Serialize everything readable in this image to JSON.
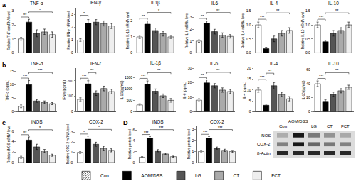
{
  "panel_labels": [
    "a",
    "b",
    "c",
    "D"
  ],
  "groups": [
    {
      "name": "Con",
      "color": "#ffffff",
      "marker": "hatched"
    },
    {
      "name": "AOM/DSS",
      "color": "#000000"
    },
    {
      "name": "LG",
      "color": "#555555"
    },
    {
      "name": "CT",
      "color": "#aaaaaa"
    },
    {
      "name": "FCT",
      "color": "#eeeeee"
    }
  ],
  "blot": {
    "lanes": [
      "Con",
      "AOM/DSS",
      "LG",
      "CT",
      "FCT"
    ],
    "rows": [
      "iNOS",
      "COX-2",
      "β-Actin"
    ]
  },
  "chart_data": [
    {
      "type": "bar",
      "title": "TNF-α",
      "y_label": "Relative TNF-α mRNA level",
      "tick_labels": "y",
      "categories": [
        "Con",
        "AOM/DSS",
        "LG",
        "CT",
        "FCT"
      ],
      "values": [
        1.0,
        2.2,
        1.4,
        1.5,
        1.3
      ],
      "errors": [
        0.1,
        0.2,
        0.25,
        0.2,
        0.2
      ],
      "ylim": [
        0,
        3.2
      ],
      "yticks": [
        0,
        1,
        2,
        3
      ],
      "significance": [
        {
          "from": 0,
          "to": 1,
          "label": "**"
        },
        {
          "from": 1,
          "to": 4,
          "label": "*"
        }
      ]
    },
    {
      "type": "bar",
      "title": "IFN-γ",
      "y_label": "Relative IFN-γ mRNA level",
      "tick_labels": "y",
      "categories": [
        "Con",
        "AOM/DSS",
        "LG",
        "CT",
        "FCT"
      ],
      "values": [
        1.0,
        2.3,
        2.4,
        2.3,
        2.1
      ],
      "errors": [
        0.1,
        0.3,
        0.2,
        0.2,
        0.2
      ],
      "ylim": [
        0,
        3.5
      ],
      "yticks": [
        0,
        1,
        2,
        3
      ],
      "significance": [
        {
          "from": 0,
          "to": 1,
          "label": "*"
        }
      ]
    },
    {
      "type": "bar",
      "title": "IL1β",
      "y_label": "Relative IL-1β mRNA level",
      "tick_labels": "y",
      "categories": [
        "Con",
        "AOM/DSS",
        "LG",
        "CT",
        "FCT"
      ],
      "values": [
        1.0,
        1.8,
        1.4,
        1.2,
        1.0
      ],
      "errors": [
        0.1,
        0.2,
        0.15,
        0.15,
        0.1
      ],
      "ylim": [
        0,
        2.8
      ],
      "yticks": [
        0,
        1,
        2
      ],
      "significance": [
        {
          "from": 0,
          "to": 1,
          "label": "**"
        },
        {
          "from": 1,
          "to": 4,
          "label": "*"
        }
      ]
    },
    {
      "type": "bar",
      "title": "IL6",
      "y_label": "Relative IL-6 mRNA level",
      "tick_labels": "y",
      "categories": [
        "Con",
        "AOM/DSS",
        "LG",
        "CT",
        "FCT"
      ],
      "values": [
        1.0,
        2.5,
        1.8,
        1.5,
        1.4
      ],
      "errors": [
        0.1,
        0.2,
        0.2,
        0.2,
        0.15
      ],
      "ylim": [
        0,
        3.8
      ],
      "yticks": [
        0,
        1,
        2,
        3
      ],
      "significance": [
        {
          "from": 0,
          "to": 1,
          "label": "**"
        },
        {
          "from": 1,
          "to": 4,
          "label": "**"
        }
      ]
    },
    {
      "type": "bar",
      "title": "IL-4",
      "y_label": "Relative IL-4 mRNA level",
      "tick_labels": "y",
      "categories": [
        "Con",
        "AOM/DSS",
        "LG",
        "CT",
        "FCT"
      ],
      "values": [
        1.0,
        0.15,
        0.5,
        0.7,
        0.8
      ],
      "errors": [
        0.1,
        0.05,
        0.1,
        0.1,
        0.1
      ],
      "ylim": [
        0,
        1.6
      ],
      "yticks": [
        {
          "value": 0,
          "label": "0.0"
        },
        {
          "value": 0.5,
          "label": "0.5"
        },
        {
          "value": 1,
          "label": "1.0"
        },
        {
          "value": 1.5,
          "label": "1.5"
        }
      ],
      "significance": [
        {
          "from": 0,
          "to": 1,
          "label": "***"
        },
        {
          "from": 1,
          "to": 4,
          "label": "**"
        }
      ]
    },
    {
      "type": "bar",
      "title": "IL-10",
      "y_label": "Relative IL-10 mRNA level",
      "tick_labels": "y",
      "categories": [
        "Con",
        "AOM/DSS",
        "LG",
        "CT",
        "FCT"
      ],
      "values": [
        1.0,
        0.4,
        0.7,
        0.8,
        1.0
      ],
      "errors": [
        0.1,
        0.05,
        0.1,
        0.1,
        0.1
      ],
      "ylim": [
        0,
        1.6
      ],
      "yticks": [
        {
          "value": 0,
          "label": "0.0"
        },
        {
          "value": 0.5,
          "label": "0.5"
        },
        {
          "value": 1,
          "label": "1.0"
        },
        {
          "value": 1.5,
          "label": "1.5"
        }
      ],
      "significance": [
        {
          "from": 0,
          "to": 1,
          "label": "***"
        },
        {
          "from": 1,
          "to": 4,
          "label": "**"
        }
      ]
    },
    {
      "type": "bar",
      "title": "TNF-α",
      "y_label": "TNF-α (pg/mL)",
      "tick_labels": "y",
      "categories": [
        "Con",
        "AOM/DSS",
        "LG",
        "CT",
        "FCT"
      ],
      "values": [
        2,
        10,
        4,
        3.5,
        3
      ],
      "errors": [
        0.5,
        1.5,
        0.5,
        0.5,
        0.4
      ],
      "ylim": [
        0,
        16
      ],
      "yticks": [
        0,
        5,
        10,
        15
      ],
      "significance": [
        {
          "from": 0,
          "to": 1,
          "label": "***"
        },
        {
          "from": 1,
          "to": 4,
          "label": "***"
        }
      ]
    },
    {
      "type": "bar",
      "title": "IFN-r",
      "y_label": "IFN-γ (pg/mL)",
      "tick_labels": "y",
      "categories": [
        "Con",
        "AOM/DSS",
        "LG",
        "CT",
        "FCT"
      ],
      "values": [
        80,
        180,
        120,
        150,
        130
      ],
      "errors": [
        10,
        20,
        15,
        15,
        15
      ],
      "ylim": [
        0,
        280
      ],
      "yticks": [
        0,
        100,
        200
      ],
      "significance": [
        {
          "from": 0,
          "to": 1,
          "label": "***"
        },
        {
          "from": 1,
          "to": 2,
          "label": "**"
        }
      ]
    },
    {
      "type": "bar",
      "title": "IL-1β",
      "y_label": "IL-1β (pg/mL)",
      "tick_labels": "y",
      "categories": [
        "Con",
        "AOM/DSS",
        "LG",
        "CT",
        "FCT"
      ],
      "values": [
        300,
        1200,
        900,
        700,
        500
      ],
      "errors": [
        50,
        150,
        100,
        80,
        80
      ],
      "ylim": [
        0,
        1900
      ],
      "yticks": [
        0,
        500,
        1000,
        1500
      ],
      "significance": [
        {
          "from": 0,
          "to": 1,
          "label": "***"
        },
        {
          "from": 1,
          "to": 4,
          "label": "**"
        }
      ]
    },
    {
      "type": "bar",
      "title": "IL-6",
      "y_label": "IL-6 (pg/mL)",
      "tick_labels": "y",
      "categories": [
        "Con",
        "AOM/DSS",
        "LG",
        "CT",
        "FCT"
      ],
      "values": [
        8,
        20,
        18,
        15,
        14
      ],
      "errors": [
        1,
        2,
        1.5,
        1.5,
        1.5
      ],
      "ylim": [
        0,
        30
      ],
      "yticks": [
        0,
        10,
        20,
        30
      ],
      "significance": [
        {
          "from": 0,
          "to": 1,
          "label": "**"
        },
        {
          "from": 1,
          "to": 4,
          "label": "**"
        }
      ]
    },
    {
      "type": "bar",
      "title": "IL-4",
      "y_label": "IL-4 (pg/mL)",
      "tick_labels": "y",
      "categories": [
        "Con",
        "AOM/DSS",
        "LG",
        "CT",
        "FCT"
      ],
      "values": [
        10,
        3,
        12,
        8,
        6
      ],
      "errors": [
        1,
        0.5,
        1.5,
        1,
        1
      ],
      "ylim": [
        0,
        20
      ],
      "yticks": [
        0,
        5,
        10,
        15,
        20
      ],
      "significance": [
        {
          "from": 0,
          "to": 1,
          "label": "***"
        },
        {
          "from": 1,
          "to": 2,
          "label": "**"
        }
      ]
    },
    {
      "type": "bar",
      "title": "IL-10",
      "y_label": "IL-10 (pg/mL)",
      "tick_labels": "y",
      "categories": [
        "Con",
        "AOM/DSS",
        "LG",
        "CT",
        "FCT"
      ],
      "values": [
        40,
        15,
        25,
        30,
        35
      ],
      "errors": [
        4,
        2,
        3,
        3,
        3
      ],
      "ylim": [
        0,
        62
      ],
      "yticks": [
        0,
        20,
        40,
        60
      ],
      "significance": [
        {
          "from": 0,
          "to": 1,
          "label": "***"
        },
        {
          "from": 1,
          "to": 4,
          "label": "**"
        }
      ]
    },
    {
      "type": "bar",
      "title": "iNOS",
      "y_label": "Relative iNOS mRNA level",
      "tick_labels": "y",
      "categories": [
        "Con",
        "AOM/DSS",
        "LG",
        "CT",
        "FCT"
      ],
      "values": [
        1,
        4.3,
        3.0,
        2.2,
        1.4
      ],
      "errors": [
        0.2,
        0.6,
        0.5,
        0.3,
        0.2
      ],
      "ylim": [
        0,
        7
      ],
      "yticks": [
        0,
        2,
        4,
        6
      ],
      "significance": [
        {
          "from": 0,
          "to": 1,
          "label": "**"
        },
        {
          "from": 1,
          "to": 4,
          "label": "*"
        }
      ]
    },
    {
      "type": "bar",
      "title": "COX-2",
      "y_label": "Relative COX-2 mRNA level",
      "tick_labels": "y",
      "categories": [
        "Con",
        "AOM/DSS",
        "LG",
        "CT",
        "FCT"
      ],
      "values": [
        1,
        2.3,
        1.8,
        1.4,
        1.2
      ],
      "errors": [
        0.1,
        0.3,
        0.2,
        0.2,
        0.15
      ],
      "ylim": [
        0,
        3.6
      ],
      "yticks": [
        0,
        1,
        2,
        3
      ],
      "significance": [
        {
          "from": 0,
          "to": 1,
          "label": "*"
        },
        {
          "from": 1,
          "to": 4,
          "label": "*"
        }
      ]
    },
    {
      "type": "bar",
      "title": "iNOS",
      "y_label": "Relative protein level",
      "tick_labels": "y",
      "categories": [
        "Con",
        "AOM/DSS",
        "LG",
        "CT",
        "FCT"
      ],
      "values": [
        1,
        4.5,
        2.2,
        1.6,
        1.1
      ],
      "errors": [
        0.1,
        0.3,
        0.2,
        0.15,
        0.1
      ],
      "ylim": [
        0,
        6.8
      ],
      "yticks": [
        0,
        2,
        4,
        6
      ],
      "significance": [
        {
          "from": 0,
          "to": 1,
          "label": "***"
        },
        {
          "from": 1,
          "to": 4,
          "label": "***"
        }
      ]
    },
    {
      "type": "bar",
      "title": "COX-2",
      "y_label": "Relative protein level",
      "tick_labels": "y",
      "categories": [
        "Con",
        "AOM/DSS",
        "LG",
        "CT",
        "FCT"
      ],
      "values": [
        1,
        2.2,
        1.3,
        1.1,
        1.0
      ],
      "errors": [
        0.1,
        0.15,
        0.1,
        0.1,
        0.1
      ],
      "ylim": [
        0,
        3.3
      ],
      "yticks": [
        0,
        1,
        2,
        3
      ],
      "significance": [
        {
          "from": 0,
          "to": 1,
          "label": "***"
        },
        {
          "from": 1,
          "to": 4,
          "label": "***"
        }
      ]
    }
  ]
}
